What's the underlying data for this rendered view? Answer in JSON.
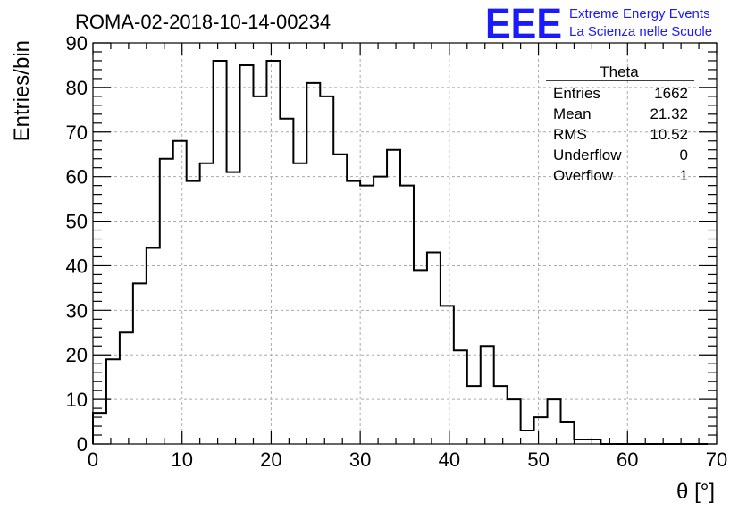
{
  "title": "ROMA-02-2018-10-14-00234",
  "logo": {
    "letters": "EEE",
    "line1": "Extreme Energy Events",
    "line2": "La Scienza nelle Scuole",
    "color": "#1a1aff"
  },
  "stats": {
    "name": "Theta",
    "rows": [
      {
        "label": "Entries",
        "value": "1662"
      },
      {
        "label": "Mean",
        "value": "21.32"
      },
      {
        "label": "RMS",
        "value": "10.52"
      },
      {
        "label": "Underflow",
        "value": "0"
      },
      {
        "label": "Overflow",
        "value": "1"
      }
    ]
  },
  "chart_data": {
    "type": "bar",
    "xlabel": "θ [°]",
    "ylabel": "Entries/bin",
    "xlim": [
      0,
      70
    ],
    "ylim": [
      0,
      90
    ],
    "xticks": [
      0,
      10,
      20,
      30,
      40,
      50,
      60,
      70
    ],
    "yticks": [
      0,
      10,
      20,
      30,
      40,
      50,
      60,
      70,
      80,
      90
    ],
    "grid": true,
    "bin_width": 1.5,
    "bin_start": 0,
    "values": [
      7,
      19,
      25,
      36,
      44,
      64,
      68,
      59,
      63,
      86,
      61,
      85,
      78,
      86,
      73,
      63,
      81,
      78,
      65,
      59,
      58,
      60,
      66,
      58,
      39,
      43,
      31,
      21,
      13,
      22,
      13,
      10,
      3,
      6,
      10,
      5,
      1,
      1,
      0,
      0,
      0,
      0,
      0,
      0,
      0,
      0
    ]
  }
}
